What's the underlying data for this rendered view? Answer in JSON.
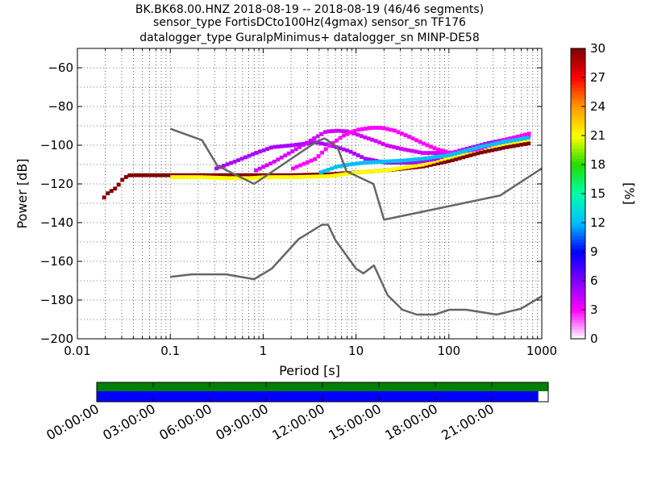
{
  "title_lines": [
    "BK.BK68.00.HNZ   2018-08-19 -- 2018-08-19  (46/46 segments)",
    "sensor_type FortisDCto100Hz(4gmax) sensor_sn TF176",
    "datalogger_type GuralpMinimus+ datalogger_sn MINP-DE58"
  ],
  "chart_data": {
    "type": "heatmap",
    "title": "BK.BK68.00.HNZ   2018-08-19 -- 2018-08-19  (46/46 segments)",
    "xlabel": "Period [s]",
    "ylabel": "Power [dB]",
    "xscale": "log",
    "xlim": [
      0.01,
      1000
    ],
    "ylim": [
      -200,
      -50
    ],
    "x_ticks": [
      0.01,
      0.1,
      1,
      10,
      100,
      1000
    ],
    "x_tick_labels": [
      "0.01",
      "0.1",
      "1",
      "10",
      "100",
      "1000"
    ],
    "y_ticks": [
      -60,
      -80,
      -100,
      -120,
      -140,
      -160,
      -180,
      -200
    ],
    "y_tick_labels": [
      "−60",
      "−80",
      "−100",
      "−120",
      "−140",
      "−160",
      "−180",
      "−200"
    ],
    "grid": true,
    "colorbar": {
      "label": "[%]",
      "range": [
        0,
        30
      ],
      "ticks": [
        0,
        3,
        6,
        9,
        12,
        15,
        18,
        21,
        24,
        27,
        30
      ],
      "colormap": "pqlx",
      "colors": [
        "#ffffff",
        "#ff00ff",
        "#7f00ff",
        "#0000ff",
        "#00bfff",
        "#00ffaa",
        "#22dd00",
        "#ffff00",
        "#ff9900",
        "#ff0000",
        "#7f0000"
      ]
    },
    "noise_model_color": "#666666",
    "noise_models": [
      {
        "period": [
          0.1,
          0.22,
          0.32,
          0.8,
          3.8,
          4.6,
          6.3,
          7.9,
          15.4,
          20,
          354.8,
          1000
        ],
        "power": [
          -91.5,
          -97.4,
          -110.5,
          -120,
          -98,
          -96.5,
          -101,
          -113.5,
          -120,
          -138.5,
          -126,
          -112
        ]
      },
      {
        "period": [
          0.1,
          0.17,
          0.4,
          0.8,
          1.24,
          2.4,
          4.3,
          5,
          6,
          10,
          12,
          15.6,
          21.9,
          31.6,
          45,
          70,
          101,
          154,
          328,
          600,
          1000
        ],
        "power": [
          -168,
          -166.7,
          -166.7,
          -169.2,
          -163.7,
          -148.6,
          -141.1,
          -141.1,
          -149,
          -163.8,
          -166.2,
          -162.1,
          -177.5,
          -185,
          -187.5,
          -187.5,
          -185,
          -185,
          -187.5,
          -184.4,
          -178
        ]
      }
    ],
    "psd_bands": [
      {
        "period": [
          0.0185,
          0.02,
          0.025,
          0.03,
          0.035,
          0.1,
          0.2,
          0.4,
          1,
          2,
          5,
          10,
          20,
          50,
          100,
          200,
          400,
          700
        ],
        "power": [
          -127,
          -125,
          -122,
          -117,
          -115.5,
          -115.5,
          -115.5,
          -115.5,
          -115.5,
          -115.5,
          -115,
          -114,
          -113,
          -111,
          -108,
          -104,
          -101,
          -99
        ],
        "level": 30
      },
      {
        "period": [
          0.1,
          0.2,
          0.4,
          0.7,
          1,
          2,
          5,
          10,
          20,
          50,
          100,
          200,
          400,
          700
        ],
        "power": [
          -116.5,
          -116.5,
          -117,
          -117,
          -116.5,
          -116.5,
          -116,
          -114,
          -113,
          -110,
          -106,
          -102,
          -99,
          -97
        ],
        "level": 21
      },
      {
        "period": [
          0.3,
          0.5,
          0.8,
          1.2,
          2,
          3.5,
          5,
          8,
          12,
          20,
          40,
          70,
          120,
          250,
          500,
          700
        ],
        "power": [
          -112,
          -108,
          -104,
          -101,
          -100,
          -98.5,
          -100,
          -103,
          -107,
          -109,
          -109,
          -107,
          -103,
          -99,
          -96,
          -95
        ],
        "level": 5
      },
      {
        "period": [
          0.8,
          1.2,
          2,
          3.5,
          4.5,
          6,
          8,
          12,
          16,
          20,
          30,
          50,
          100,
          200,
          400,
          700
        ],
        "power": [
          -113,
          -109,
          -103,
          -96,
          -93,
          -92.5,
          -93,
          -96,
          -98,
          -100,
          -102,
          -104,
          -104,
          -101,
          -98,
          -96
        ],
        "level": 4
      },
      {
        "period": [
          2,
          3.5,
          5,
          7,
          10,
          14,
          18,
          25,
          35,
          50,
          70,
          100,
          200,
          400,
          700
        ],
        "power": [
          -112,
          -107,
          -100,
          -95,
          -92,
          -91,
          -91,
          -92.5,
          -95.5,
          -99,
          -102,
          -104,
          -102,
          -97,
          -94
        ],
        "level": 3
      },
      {
        "period": [
          4,
          6,
          8,
          12,
          18,
          30,
          50,
          100,
          200,
          400,
          700
        ],
        "power": [
          -114,
          -111,
          -110,
          -109,
          -108.5,
          -108,
          -107,
          -105,
          -101,
          -98,
          -96
        ],
        "level": 12
      }
    ]
  },
  "timeline": {
    "labels": [
      "00:00:00",
      "03:00:00",
      "06:00:00",
      "09:00:00",
      "12:00:00",
      "15:00:00",
      "18:00:00",
      "21:00:00"
    ],
    "top_bar_color": "#008000",
    "bottom_bar_color": "#0000ff",
    "top_coverage": 1.0,
    "bottom_coverage": 0.978
  }
}
